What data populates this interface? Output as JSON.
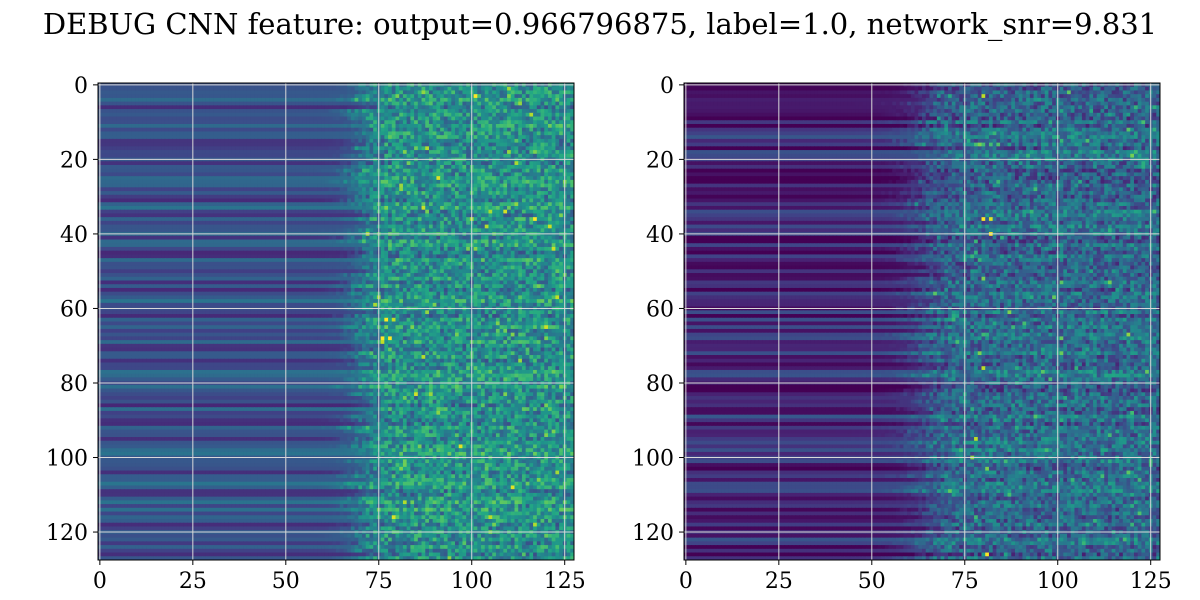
{
  "title": "DEBUG CNN feature: output=0.966796875, label=1.0, network_snr=9.831",
  "colormap": "viridis",
  "colors": {
    "background": "#ffffff",
    "grid": "#d9d9d9",
    "axes_frame": "#000000"
  },
  "chart_data": [
    {
      "type": "heatmap",
      "panel": "left",
      "title": "",
      "xlabel": "",
      "ylabel": "",
      "xlim": [
        -0.5,
        127.5
      ],
      "ylim": [
        127.5,
        -0.5
      ],
      "grid": true,
      "xticks": [
        0,
        25,
        50,
        75,
        100,
        125
      ],
      "yticks": [
        0,
        20,
        40,
        60,
        80,
        100,
        120
      ],
      "xtick_labels": [
        "0",
        "25",
        "50",
        "75",
        "100",
        "125"
      ],
      "ytick_labels": [
        "0",
        "20",
        "40",
        "60",
        "80",
        "100",
        "120"
      ],
      "shape": [
        128,
        128
      ],
      "pattern": {
        "onset_col": 70,
        "base_level": 0.25,
        "onset_width": 8,
        "high_noise": 0.4,
        "row_stripes": 0.14
      },
      "highlights": [
        {
          "row": 3,
          "col": 101,
          "value": 1.0
        },
        {
          "row": 3,
          "col": 110,
          "value": 0.8
        },
        {
          "row": 16,
          "col": 77,
          "value": 0.7
        },
        {
          "row": 27,
          "col": 81,
          "value": 0.85
        },
        {
          "row": 44,
          "col": 78,
          "value": 0.7
        },
        {
          "row": 63,
          "col": 77,
          "value": 1.0
        },
        {
          "row": 63,
          "col": 79,
          "value": 0.9
        },
        {
          "row": 68,
          "col": 76,
          "value": 1.0
        },
        {
          "row": 68,
          "col": 78,
          "value": 1.0
        },
        {
          "row": 68,
          "col": 120,
          "value": 0.8
        },
        {
          "row": 103,
          "col": 81,
          "value": 0.8
        },
        {
          "row": 108,
          "col": 80,
          "value": 0.7
        }
      ]
    },
    {
      "type": "heatmap",
      "panel": "right",
      "title": "",
      "xlabel": "",
      "ylabel": "",
      "xlim": [
        -0.5,
        127.5
      ],
      "ylim": [
        127.5,
        -0.5
      ],
      "grid": true,
      "xticks": [
        0,
        25,
        50,
        75,
        100,
        125
      ],
      "yticks": [
        0,
        20,
        40,
        60,
        80,
        100,
        120
      ],
      "xtick_labels": [
        "0",
        "25",
        "50",
        "75",
        "100",
        "125"
      ],
      "ytick_labels": [
        "0",
        "20",
        "40",
        "60",
        "80",
        "100",
        "120"
      ],
      "shape": [
        128,
        128
      ],
      "pattern": {
        "onset_col": 64,
        "base_level": 0.12,
        "onset_width": 12,
        "high_noise": 0.35,
        "row_stripes": 0.16
      },
      "highlights": [
        {
          "row": 3,
          "col": 80,
          "value": 0.9
        },
        {
          "row": 16,
          "col": 79,
          "value": 0.8
        },
        {
          "row": 36,
          "col": 80,
          "value": 1.0
        },
        {
          "row": 36,
          "col": 82,
          "value": 0.95
        },
        {
          "row": 40,
          "col": 82,
          "value": 1.0
        },
        {
          "row": 52,
          "col": 80,
          "value": 0.8
        },
        {
          "row": 72,
          "col": 79,
          "value": 0.8
        },
        {
          "row": 76,
          "col": 80,
          "value": 0.9
        },
        {
          "row": 95,
          "col": 78,
          "value": 0.9
        },
        {
          "row": 103,
          "col": 81,
          "value": 0.8
        },
        {
          "row": 126,
          "col": 81,
          "value": 1.0
        }
      ]
    }
  ]
}
